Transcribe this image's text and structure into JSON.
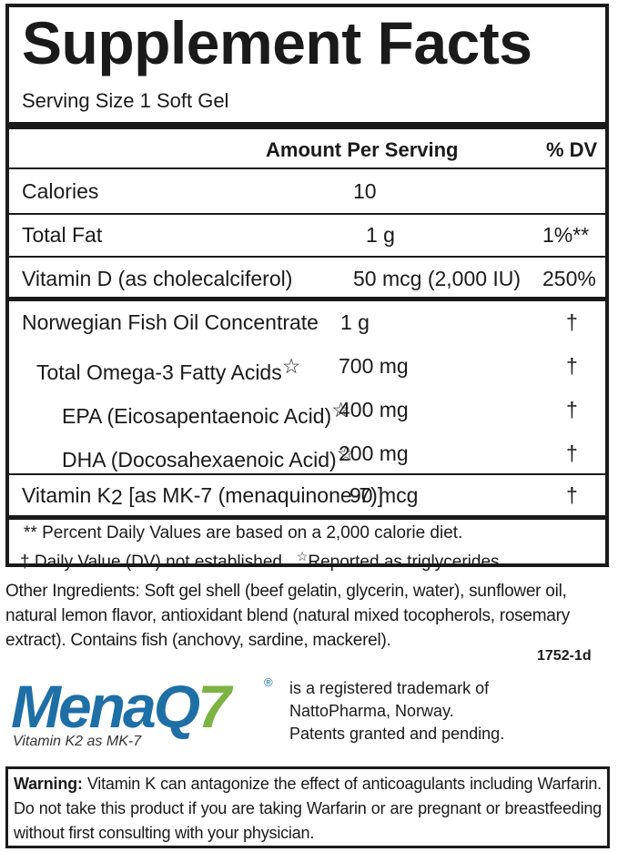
{
  "header": {
    "title": "Supplement Facts",
    "serving_size": "Serving Size 1 Soft Gel",
    "col_amount": "Amount Per Serving",
    "col_dv": "% DV"
  },
  "rows": [
    {
      "name": "Calories",
      "amount": "10",
      "dv": ""
    },
    {
      "name": "Total Fat",
      "amount": "1 g",
      "dv": "1%**"
    },
    {
      "name": "Vitamin D (as cholecalciferol)",
      "amount": "50 mcg (2,000 IU)",
      "dv": "250%"
    },
    {
      "name": "Norwegian Fish Oil Concentrate",
      "amount": "1 g",
      "dv": "†"
    },
    {
      "name": "Total Omega-3 Fatty Acids",
      "star": "☆",
      "amount": "700 mg",
      "dv": "†"
    },
    {
      "name": "EPA",
      "detail": "(Eicosapentaenoic Acid)",
      "star": "☆",
      "amount": "400 mg",
      "dv": "†"
    },
    {
      "name": "DHA",
      "detail": "(Docosahexaenoic Acid)",
      "star": "☆",
      "amount": "200 mg",
      "dv": "†"
    },
    {
      "name": "Vitamin K",
      "subscript": "2",
      "detail": "[as MK-7 (menaquinone-7)]",
      "amount": "90 mcg",
      "dv": "†"
    }
  ],
  "footnotes": {
    "line1": "** Percent Daily Values are based on a 2,000 calorie diet.",
    "line2a": "† Daily Value (DV) not established.",
    "line2_star": "☆",
    "line2b": "Reported as triglycerides."
  },
  "other_ingredients": "Other Ingredients: Soft gel shell (beef gelatin, glycerin, water), sunflower oil, natural lemon flavor, antioxidant blend (natural mixed tocopherols, rosemary extract). Contains fish (anchovy, sardine, mackerel).",
  "lot_code": "1752-1d",
  "logo": {
    "mena": "Mena",
    "q": "Q",
    "seven": "7",
    "reg": "®",
    "tagline": "Vitamin K2 as MK-7"
  },
  "trademark": {
    "line1": "is a registered trademark of",
    "line2": "NattoPharma, Norway.",
    "line3": "Patents granted and pending."
  },
  "warning": {
    "label": "Warning:",
    "text": " Vitamin K can antagonize the effect of anticoagulants including Warfarin. Do not take this product if you are taking Warfarin or are pregnant or breastfeeding without first consulting with your physician."
  },
  "colors": {
    "text": "#1a1a1a",
    "logo_blue": "#1e6fa6",
    "logo_green": "#7cb342"
  }
}
